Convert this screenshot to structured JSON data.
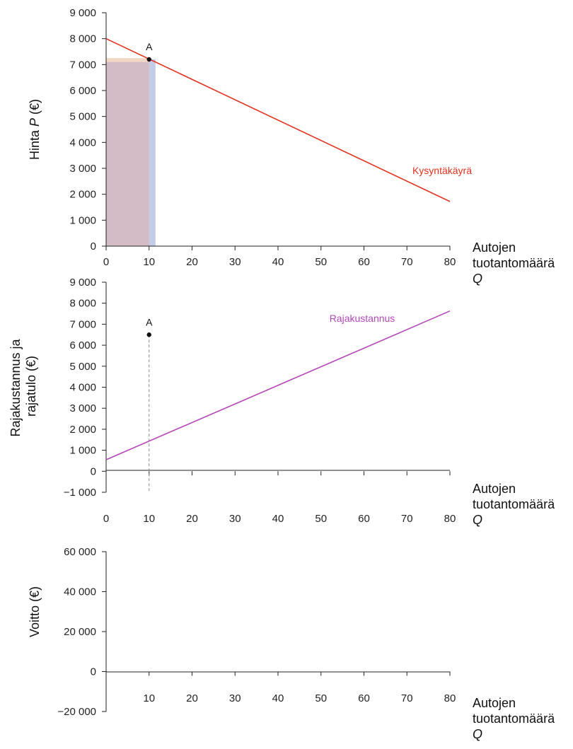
{
  "chart_data": [
    {
      "id": "demand",
      "type": "line",
      "ylabel": "Hinta",
      "ylabel_var": "P",
      "ylabel_unit": "(€)",
      "xlabel_line1": "Autojen",
      "xlabel_line2": "tuotantomäärä",
      "xlabel_var": "Q",
      "xlim": [
        0,
        80
      ],
      "ylim": [
        0,
        9000
      ],
      "xticks": [
        0,
        10,
        20,
        30,
        40,
        50,
        60,
        70,
        80
      ],
      "xtick_labels": [
        "0",
        "10",
        "20",
        "30",
        "40",
        "50",
        "60",
        "70",
        "80"
      ],
      "yticks": [
        0,
        1000,
        2000,
        3000,
        4000,
        5000,
        6000,
        7000,
        8000,
        9000
      ],
      "ytick_labels": [
        "0",
        "1 000",
        "2 000",
        "3 000",
        "4 000",
        "5 000",
        "6 000",
        "7 000",
        "8 000",
        "9 000"
      ],
      "series": [
        {
          "name": "Kysyntäkäyrä",
          "color": "#e2321f",
          "x": [
            0,
            80
          ],
          "y": [
            8000,
            1720
          ]
        }
      ],
      "point": {
        "label": "A",
        "x": 10,
        "y": 7200
      },
      "rects": [
        {
          "name": "revenue-area",
          "x0": 0,
          "x1": 11.5,
          "y0": 0,
          "y1": 7200,
          "color": "#c5cde6"
        },
        {
          "name": "cost-area",
          "x0": 0,
          "x1": 10,
          "y0": 0,
          "y1": 7250,
          "color": "#f2d8c4"
        },
        {
          "name": "overlap-area",
          "x0": 0,
          "x1": 10,
          "y0": 0,
          "y1": 7100,
          "color": "#d3bcc6"
        }
      ]
    },
    {
      "id": "marginal",
      "type": "line",
      "ylabel_line1": "Rajakustannus ja",
      "ylabel_line2": "rajatulo (€)",
      "xlabel_line1": "Autojen",
      "xlabel_line2": "tuotantomäärä",
      "xlabel_var": "Q",
      "xlim": [
        0,
        80
      ],
      "ylim": [
        -1000,
        9000
      ],
      "xticks": [
        0,
        10,
        20,
        30,
        40,
        50,
        60,
        70,
        80
      ],
      "xtick_labels": [
        "0",
        "10",
        "20",
        "30",
        "40",
        "50",
        "60",
        "70",
        "80"
      ],
      "yticks": [
        -1000,
        0,
        1000,
        2000,
        3000,
        4000,
        5000,
        6000,
        7000,
        8000,
        9000
      ],
      "ytick_labels": [
        "−1 000",
        "0",
        "1 000",
        "2 000",
        "3 000",
        "4 000",
        "5 000",
        "6 000",
        "7 000",
        "8 000",
        "9 000"
      ],
      "series": [
        {
          "name": "Rajakustannus",
          "color": "#b347b8",
          "x": [
            0,
            80
          ],
          "y": [
            550,
            7630
          ]
        }
      ],
      "point": {
        "label": "A",
        "x": 10,
        "y": 6500
      },
      "dashed_x": 10
    },
    {
      "id": "profit",
      "type": "line",
      "ylabel": "Voitto (€)",
      "xlabel_line1": "Autojen",
      "xlabel_line2": "tuotantomäärä",
      "xlabel_var": "Q",
      "xlim": [
        0,
        80
      ],
      "ylim": [
        -20000,
        60000
      ],
      "xticks": [
        10,
        20,
        30,
        40,
        50,
        60,
        70,
        80
      ],
      "xtick_labels": [
        "10",
        "20",
        "30",
        "40",
        "50",
        "60",
        "70",
        "80"
      ],
      "yticks": [
        -20000,
        0,
        20000,
        40000,
        60000
      ],
      "ytick_labels": [
        "−20 000",
        "0",
        "20 000",
        "40 000",
        "60 000"
      ],
      "series": []
    }
  ]
}
